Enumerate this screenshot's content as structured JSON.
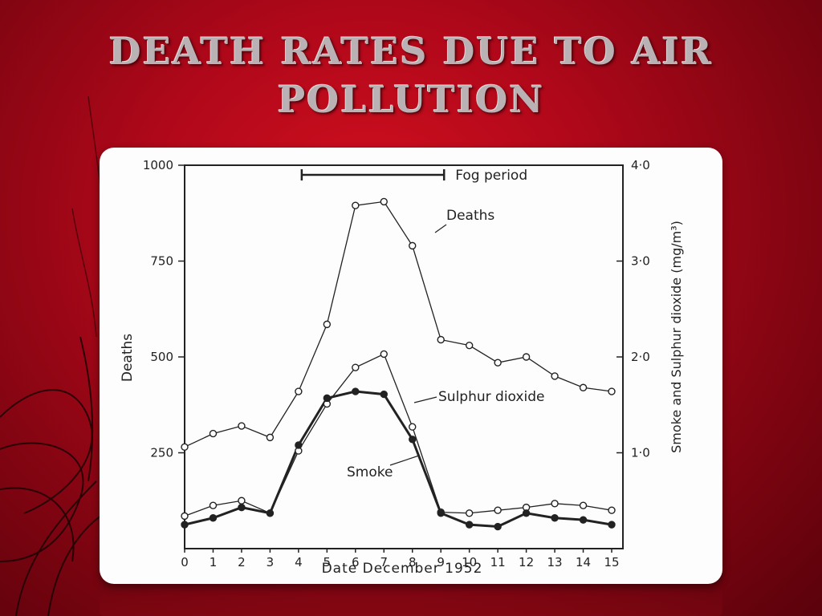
{
  "slide": {
    "title": "DEATH RATES DUE TO AIR POLLUTION"
  },
  "colors": {
    "background": "#c00818",
    "card": "#fdfdfd",
    "ink": "#222222"
  },
  "chart_data": {
    "type": "line",
    "xlabel": "Date December 1952",
    "ylabel_left": "Deaths",
    "ylabel_right": "Smoke and Sulphur dioxide (mg/m³)",
    "x_ticks": [
      0,
      1,
      2,
      3,
      4,
      5,
      6,
      7,
      8,
      9,
      10,
      11,
      12,
      13,
      14,
      15
    ],
    "y_left_ticks": [
      250,
      500,
      750,
      1000
    ],
    "y_left_lim": [
      0,
      1000
    ],
    "y_right_ticks": [
      "1·0",
      "2·0",
      "3·0",
      "4·0"
    ],
    "y_right_lim": [
      0,
      4
    ],
    "annotation": {
      "label": "Fog period",
      "x_start": 4,
      "x_end": 9
    },
    "series": [
      {
        "name": "Deaths",
        "axis": "left",
        "marker": "open",
        "x": [
          0,
          1,
          2,
          3,
          4,
          5,
          6,
          7,
          8,
          9,
          10,
          11,
          12,
          13,
          14,
          15
        ],
        "values": [
          265,
          300,
          320,
          290,
          410,
          585,
          895,
          905,
          790,
          545,
          530,
          485,
          500,
          450,
          420,
          410
        ]
      },
      {
        "name": "Sulphur dioxide",
        "axis": "right",
        "marker": "open",
        "x": [
          0,
          1,
          2,
          3,
          4,
          5,
          6,
          7,
          8,
          9,
          10,
          11,
          12,
          13,
          14,
          15
        ],
        "values": [
          0.34,
          0.45,
          0.5,
          0.37,
          1.02,
          1.51,
          1.89,
          2.03,
          1.27,
          0.38,
          0.37,
          0.4,
          0.43,
          0.47,
          0.45,
          0.4
        ]
      },
      {
        "name": "Smoke",
        "axis": "right",
        "marker": "filled",
        "x": [
          0,
          1,
          2,
          3,
          4,
          5,
          6,
          7,
          8,
          9,
          10,
          11,
          12,
          13,
          14,
          15
        ],
        "values": [
          0.25,
          0.32,
          0.43,
          0.37,
          1.08,
          1.57,
          1.64,
          1.61,
          1.14,
          0.37,
          0.25,
          0.23,
          0.37,
          0.32,
          0.3,
          0.25
        ]
      }
    ],
    "series_labels": [
      "Deaths",
      "Sulphur dioxide",
      "Smoke"
    ],
    "grid": false,
    "legend": "inline annotations"
  }
}
